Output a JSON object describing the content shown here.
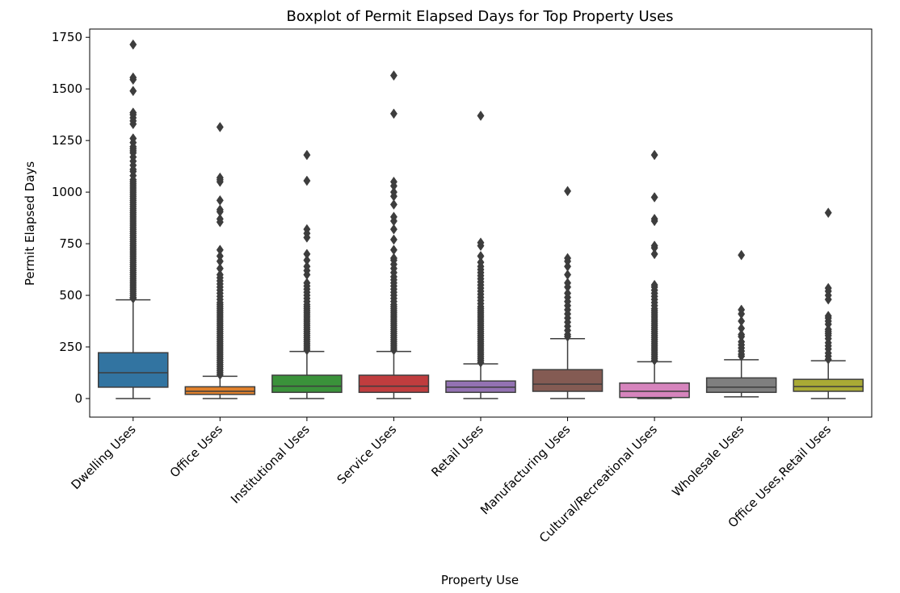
{
  "chart_data": {
    "type": "boxplot",
    "title": "Boxplot of Permit Elapsed Days for Top Property Uses",
    "xlabel": "Property Use",
    "ylabel": "Permit Elapsed Days",
    "ylim": [
      -90,
      1790
    ],
    "yticks": [
      0,
      250,
      500,
      750,
      1000,
      1250,
      1500,
      1750
    ],
    "grid": false,
    "categories": [
      "Dwelling Uses",
      "Office Uses",
      "Institutional Uses",
      "Service Uses",
      "Retail Uses",
      "Manufacturing Uses",
      "Cultural/Recreational Uses",
      "Wholesale Uses",
      "Office Uses,Retail Uses"
    ],
    "colors": [
      "#3274a1",
      "#e1812c",
      "#3a923a",
      "#c03d3e",
      "#9372b2",
      "#845b53",
      "#d684bd",
      "#7f7f7f",
      "#a9aa35"
    ],
    "boxes": [
      {
        "whisker_low": 0,
        "q1": 55,
        "median": 125,
        "q3": 222,
        "whisker_high": 478,
        "outliers": [
          485,
          490,
          500,
          510,
          520,
          530,
          540,
          550,
          560,
          570,
          580,
          590,
          600,
          610,
          620,
          630,
          640,
          650,
          660,
          670,
          680,
          690,
          700,
          710,
          720,
          730,
          740,
          750,
          760,
          770,
          780,
          790,
          800,
          810,
          820,
          830,
          840,
          850,
          860,
          870,
          880,
          890,
          900,
          910,
          920,
          930,
          940,
          950,
          960,
          970,
          980,
          990,
          1000,
          1010,
          1020,
          1030,
          1040,
          1050,
          1060,
          1080,
          1100,
          1110,
          1130,
          1150,
          1170,
          1190,
          1200,
          1210,
          1220,
          1240,
          1260,
          1330,
          1345,
          1360,
          1375,
          1385,
          1490,
          1545,
          1555,
          1715
        ]
      },
      {
        "whisker_low": 0,
        "q1": 20,
        "median": 35,
        "q3": 57,
        "whisker_high": 108,
        "outliers": [
          115,
          125,
          135,
          145,
          155,
          165,
          175,
          185,
          195,
          205,
          215,
          225,
          235,
          245,
          255,
          265,
          275,
          285,
          295,
          305,
          315,
          325,
          335,
          345,
          355,
          365,
          375,
          385,
          395,
          405,
          415,
          425,
          435,
          445,
          455,
          465,
          480,
          495,
          510,
          525,
          540,
          555,
          570,
          585,
          600,
          630,
          665,
          690,
          720,
          855,
          870,
          905,
          915,
          960,
          1050,
          1060,
          1070,
          1315
        ]
      },
      {
        "whisker_low": 0,
        "q1": 30,
        "median": 60,
        "q3": 113,
        "whisker_high": 228,
        "outliers": [
          235,
          245,
          255,
          265,
          275,
          285,
          295,
          305,
          315,
          325,
          335,
          345,
          355,
          365,
          375,
          385,
          395,
          405,
          415,
          425,
          435,
          445,
          455,
          470,
          485,
          500,
          515,
          530,
          545,
          560,
          600,
          620,
          640,
          670,
          700,
          780,
          800,
          820,
          1055,
          1180
        ]
      },
      {
        "whisker_low": 0,
        "q1": 30,
        "median": 60,
        "q3": 113,
        "whisker_high": 228,
        "outliers": [
          235,
          245,
          255,
          265,
          275,
          285,
          295,
          305,
          315,
          325,
          335,
          345,
          355,
          365,
          375,
          385,
          395,
          405,
          415,
          425,
          435,
          445,
          455,
          470,
          485,
          500,
          515,
          530,
          545,
          560,
          575,
          590,
          610,
          630,
          650,
          670,
          680,
          720,
          770,
          820,
          860,
          880,
          940,
          980,
          1000,
          1030,
          1050,
          1380,
          1565
        ]
      },
      {
        "whisker_low": 0,
        "q1": 30,
        "median": 55,
        "q3": 85,
        "whisker_high": 168,
        "outliers": [
          175,
          185,
          195,
          205,
          215,
          225,
          235,
          245,
          255,
          265,
          275,
          285,
          295,
          305,
          315,
          325,
          335,
          345,
          355,
          365,
          375,
          385,
          395,
          405,
          415,
          425,
          435,
          445,
          460,
          475,
          490,
          505,
          520,
          535,
          550,
          565,
          580,
          595,
          610,
          625,
          640,
          660,
          690,
          740,
          755,
          1370
        ]
      },
      {
        "whisker_low": 0,
        "q1": 35,
        "median": 70,
        "q3": 140,
        "whisker_high": 290,
        "outliers": [
          300,
          310,
          330,
          350,
          370,
          390,
          410,
          430,
          450,
          470,
          490,
          510,
          540,
          560,
          600,
          640,
          665,
          680,
          1005
        ]
      },
      {
        "whisker_low": 0,
        "q1": 5,
        "median": 35,
        "q3": 75,
        "whisker_high": 178,
        "outliers": [
          185,
          195,
          205,
          215,
          225,
          235,
          245,
          255,
          265,
          275,
          285,
          295,
          305,
          315,
          325,
          335,
          345,
          355,
          365,
          375,
          385,
          395,
          405,
          415,
          425,
          435,
          450,
          465,
          480,
          495,
          510,
          525,
          540,
          550,
          700,
          730,
          740,
          860,
          870,
          975,
          1180
        ]
      },
      {
        "whisker_low": 8,
        "q1": 30,
        "median": 55,
        "q3": 100,
        "whisker_high": 188,
        "outliers": [
          205,
          215,
          230,
          245,
          260,
          275,
          300,
          310,
          340,
          375,
          410,
          430,
          695
        ]
      },
      {
        "whisker_low": 0,
        "q1": 35,
        "median": 58,
        "q3": 93,
        "whisker_high": 183,
        "outliers": [
          190,
          205,
          220,
          240,
          255,
          270,
          290,
          305,
          315,
          325,
          335,
          360,
          375,
          390,
          400,
          480,
          500,
          520,
          535,
          900
        ]
      }
    ]
  }
}
